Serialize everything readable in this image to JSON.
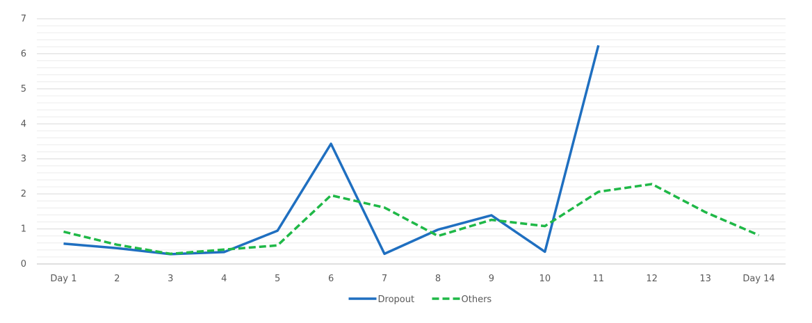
{
  "chart_data": {
    "type": "line",
    "categories": [
      "Day 1",
      "2",
      "3",
      "4",
      "5",
      "6",
      "7",
      "8",
      "9",
      "10",
      "11",
      "12",
      "13",
      "Day 14"
    ],
    "ylim": [
      0,
      7
    ],
    "y_major_ticks": [
      0,
      1,
      2,
      3,
      4,
      5,
      6,
      7
    ],
    "y_minor_step": 0.2,
    "grid": true,
    "legend_position": "bottom",
    "series": [
      {
        "name": "Dropout",
        "color": "#1f6fc0",
        "style": "solid",
        "values": [
          0.58,
          0.45,
          0.28,
          0.34,
          0.95,
          3.43,
          0.29,
          0.98,
          1.39,
          0.35,
          6.24,
          null,
          null,
          null
        ]
      },
      {
        "name": "Others",
        "color": "#1fb847",
        "style": "dashed",
        "values": [
          0.92,
          0.55,
          0.29,
          0.41,
          0.53,
          1.96,
          1.61,
          0.8,
          1.26,
          1.08,
          2.06,
          2.28,
          1.48,
          0.82
        ]
      }
    ]
  }
}
